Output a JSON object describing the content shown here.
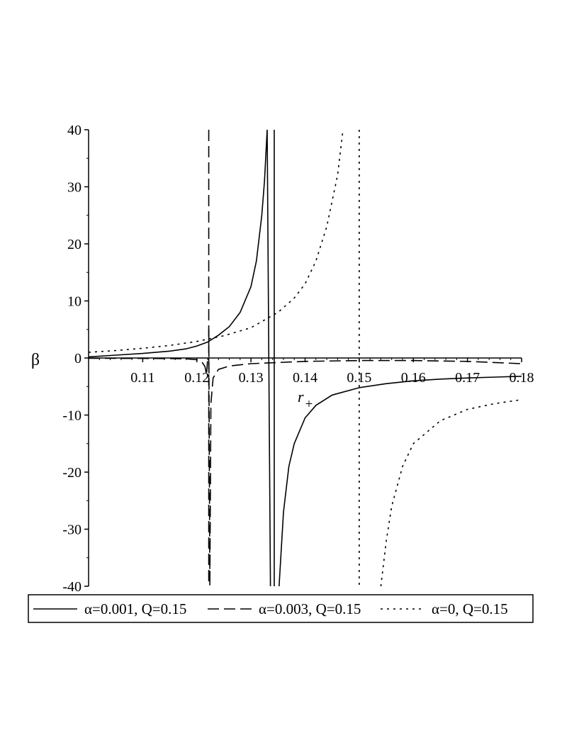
{
  "chart_data": {
    "type": "line",
    "xlabel": "r",
    "xlabel_sub": "+",
    "ylabel": "β",
    "xlim": [
      0.1,
      0.18
    ],
    "ylim": [
      -40,
      40
    ],
    "x_ticks": [
      0.11,
      0.12,
      0.13,
      0.14,
      0.15,
      0.16,
      0.17,
      0.18
    ],
    "x_tick_labels": [
      "0.11",
      "0.12",
      "0.13",
      "0.14",
      "0.15",
      "0.16",
      "0.17",
      "0.18"
    ],
    "y_ticks": [
      40,
      30,
      20,
      10,
      0,
      -10,
      -20,
      -30,
      -40
    ],
    "y_tick_labels": [
      "40",
      "30",
      "20",
      "10",
      "0",
      "-10",
      "-20",
      "-30",
      "-40"
    ],
    "grid": false,
    "legend_position": "bottom",
    "series": [
      {
        "name": "α=0.001, Q=0.15",
        "style": "solid",
        "asymptote": 0.1343,
        "x": [
          0.1,
          0.105,
          0.11,
          0.115,
          0.118,
          0.12,
          0.122,
          0.124,
          0.126,
          0.128,
          0.13,
          0.131,
          0.132,
          0.1325,
          0.133,
          0.1336,
          0.1352,
          0.136,
          0.137,
          0.138,
          0.14,
          0.142,
          0.145,
          0.15,
          0.155,
          0.16,
          0.165,
          0.17,
          0.175,
          0.18
        ],
        "y": [
          0.2,
          0.5,
          0.8,
          1.2,
          1.6,
          2.1,
          2.8,
          4.0,
          5.5,
          8.0,
          12.5,
          17.0,
          25.0,
          31.0,
          40.0,
          -40.0,
          -40.0,
          -27.0,
          -19.0,
          -15.0,
          -10.5,
          -8.3,
          -6.5,
          -5.2,
          -4.5,
          -4.0,
          -3.7,
          -3.5,
          -3.35,
          -3.2
        ]
      },
      {
        "name": "α=0.003, Q=0.15",
        "style": "dashed",
        "asymptote": 0.1222,
        "x": [
          0.1,
          0.105,
          0.11,
          0.115,
          0.118,
          0.12,
          0.121,
          0.1215,
          0.1218,
          0.122,
          0.1222,
          0.1224,
          0.1226,
          0.123,
          0.124,
          0.126,
          0.13,
          0.14,
          0.15,
          0.16,
          0.17,
          0.18
        ],
        "y": [
          -0.05,
          -0.06,
          -0.08,
          -0.1,
          -0.15,
          -0.3,
          -0.8,
          -1.5,
          -3.0,
          0.0,
          5.0,
          -40.0,
          -8.0,
          -3.5,
          -2.0,
          -1.4,
          -1.0,
          -0.6,
          -0.45,
          -0.45,
          -0.6,
          -1.0
        ]
      },
      {
        "name": "α=0, Q=0.15",
        "style": "dotted",
        "asymptote": 0.15,
        "x": [
          0.1,
          0.105,
          0.11,
          0.115,
          0.12,
          0.125,
          0.13,
          0.135,
          0.138,
          0.14,
          0.142,
          0.144,
          0.146,
          0.147,
          0.154,
          0.155,
          0.156,
          0.158,
          0.16,
          0.165,
          0.17,
          0.175,
          0.18
        ],
        "y": [
          1.0,
          1.3,
          1.7,
          2.2,
          2.9,
          3.9,
          5.3,
          8.0,
          10.5,
          13.0,
          17.0,
          23.0,
          32.0,
          40.0,
          -40.0,
          -32.0,
          -26.0,
          -19.0,
          -15.0,
          -11.0,
          -9.0,
          -8.0,
          -7.3
        ]
      }
    ]
  }
}
